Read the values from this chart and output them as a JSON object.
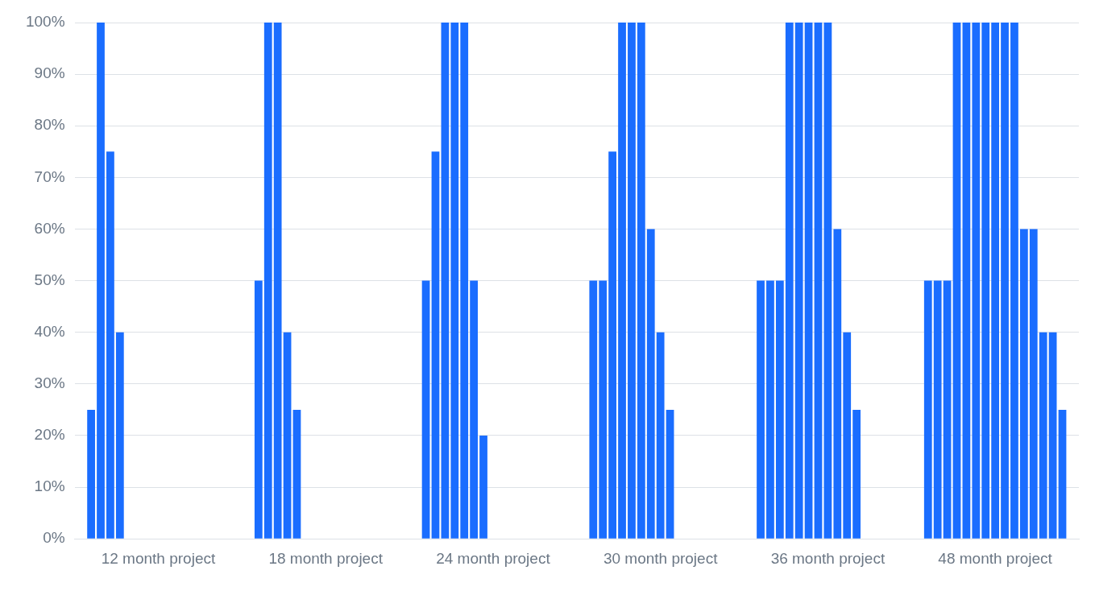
{
  "chart_data": {
    "type": "bar",
    "categories": [
      "12 month project",
      "18 month project",
      "24 month project",
      "30 month project",
      "36 month project",
      "48 month project"
    ],
    "series": [
      {
        "color": "#1a6dff",
        "values": [
          25,
          50,
          50,
          50,
          50,
          50
        ]
      },
      {
        "color": "#1a6dff",
        "values": [
          100,
          100,
          75,
          50,
          50,
          50
        ]
      },
      {
        "color": "#1a6dff",
        "values": [
          75,
          100,
          100,
          75,
          50,
          50
        ]
      },
      {
        "color": "#1a6dff",
        "values": [
          40,
          40,
          100,
          100,
          100,
          100
        ]
      },
      {
        "color": "#1a6dff",
        "values": [
          null,
          25,
          100,
          100,
          100,
          100
        ]
      },
      {
        "color": "#1a6dff",
        "values": [
          null,
          null,
          50,
          100,
          100,
          100
        ]
      },
      {
        "color": "#1a6dff",
        "values": [
          null,
          null,
          20,
          60,
          100,
          100
        ]
      },
      {
        "color": "#1a6dff",
        "values": [
          null,
          null,
          null,
          40,
          100,
          100
        ]
      },
      {
        "color": "#1a6dff",
        "values": [
          null,
          null,
          null,
          25,
          60,
          100
        ]
      },
      {
        "color": "#1a6dff",
        "values": [
          null,
          null,
          null,
          null,
          40,
          100
        ]
      },
      {
        "color": "#1a6dff",
        "values": [
          null,
          null,
          null,
          null,
          25,
          60
        ]
      },
      {
        "color": "#1a6dff",
        "values": [
          null,
          null,
          null,
          null,
          null,
          60
        ]
      },
      {
        "color": "#1a6dff",
        "values": [
          null,
          null,
          null,
          null,
          null,
          40
        ]
      },
      {
        "color": "#1a6dff",
        "values": [
          null,
          null,
          null,
          null,
          null,
          40
        ]
      },
      {
        "color": "#1a6dff",
        "values": [
          null,
          null,
          null,
          null,
          null,
          25
        ]
      }
    ],
    "ylim": [
      0,
      100
    ],
    "yticks": [
      {
        "value": 0,
        "label": "0%"
      },
      {
        "value": 10,
        "label": "10%"
      },
      {
        "value": 20,
        "label": "20%"
      },
      {
        "value": 30,
        "label": "30%"
      },
      {
        "value": 40,
        "label": "40%"
      },
      {
        "value": 50,
        "label": "50%"
      },
      {
        "value": 60,
        "label": "60%"
      },
      {
        "value": 70,
        "label": "70%"
      },
      {
        "value": 80,
        "label": "80%"
      },
      {
        "value": 90,
        "label": "90%"
      },
      {
        "value": 100,
        "label": "100%"
      }
    ],
    "grid": "y",
    "legend": false
  }
}
